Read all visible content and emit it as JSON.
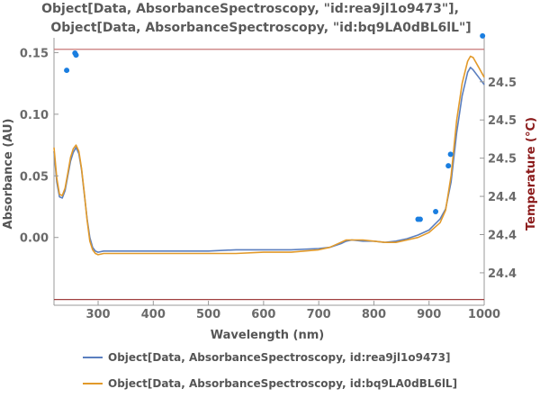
{
  "chart_data": {
    "type": "line",
    "title_lines": [
      "Object[Data, AbsorbanceSpectroscopy, \"id:rea9jl1o9473\"],",
      "Object[Data, AbsorbanceSpectroscopy, \"id:bq9LA0dBL6lL\"]"
    ],
    "xlabel": "Wavelength  (nm)",
    "ylabel": "Absorbance  (AU)",
    "y2label": "Temperature  (°C)",
    "xlim": [
      220,
      1000
    ],
    "ylim": [
      -0.055,
      0.162
    ],
    "y2lim": [
      24.383,
      24.523
    ],
    "xticks": [
      300,
      400,
      500,
      600,
      700,
      800,
      900,
      1000
    ],
    "xtick_labels": [
      "300",
      "400",
      "500",
      "600",
      "700",
      "800",
      "900",
      "1000"
    ],
    "yticks": [
      0.0,
      0.05,
      0.1,
      0.15
    ],
    "ytick_labels": [
      "0.00",
      "0.05",
      "0.10",
      "0.15"
    ],
    "y2ticks": [
      24.4,
      24.42,
      24.44,
      24.46,
      24.48,
      24.5
    ],
    "y2tick_labels": [
      "24.4",
      "24.4",
      "24.4",
      "24.5",
      "24.5",
      "24.5"
    ],
    "grid": false,
    "legend_position": "bottom",
    "series": [
      {
        "name": "Object[Data, AbsorbanceSpectroscopy, id:rea9jl1o9473]",
        "color": "#5b7fbf",
        "x": [
          220,
          225,
          230,
          235,
          240,
          245,
          250,
          255,
          260,
          265,
          270,
          275,
          280,
          285,
          290,
          295,
          300,
          310,
          320,
          340,
          360,
          380,
          400,
          450,
          500,
          550,
          600,
          650,
          700,
          720,
          740,
          750,
          760,
          780,
          800,
          820,
          840,
          860,
          880,
          900,
          920,
          930,
          940,
          950,
          960,
          970,
          975,
          980,
          990,
          1000
        ],
        "y": [
          0.07,
          0.045,
          0.033,
          0.032,
          0.038,
          0.05,
          0.062,
          0.069,
          0.073,
          0.068,
          0.055,
          0.035,
          0.015,
          0.0,
          -0.008,
          -0.011,
          -0.012,
          -0.011,
          -0.011,
          -0.011,
          -0.011,
          -0.011,
          -0.011,
          -0.011,
          -0.011,
          -0.01,
          -0.01,
          -0.01,
          -0.009,
          -0.008,
          -0.005,
          -0.003,
          -0.002,
          -0.003,
          -0.003,
          -0.004,
          -0.003,
          -0.001,
          0.002,
          0.006,
          0.015,
          0.023,
          0.045,
          0.085,
          0.115,
          0.134,
          0.138,
          0.136,
          0.13,
          0.124
        ]
      },
      {
        "name": "Object[Data, AbsorbanceSpectroscopy, id:bq9LA0dBL6lL]",
        "color": "#e29a2a",
        "x": [
          220,
          225,
          230,
          235,
          240,
          245,
          250,
          255,
          260,
          265,
          270,
          275,
          280,
          285,
          290,
          295,
          300,
          310,
          320,
          340,
          360,
          380,
          400,
          450,
          500,
          550,
          600,
          650,
          700,
          720,
          740,
          750,
          760,
          780,
          800,
          820,
          840,
          860,
          880,
          900,
          920,
          930,
          940,
          950,
          960,
          970,
          975,
          980,
          990,
          1000
        ],
        "y": [
          0.073,
          0.048,
          0.035,
          0.034,
          0.04,
          0.052,
          0.065,
          0.072,
          0.075,
          0.07,
          0.056,
          0.036,
          0.014,
          -0.003,
          -0.01,
          -0.013,
          -0.014,
          -0.013,
          -0.013,
          -0.013,
          -0.013,
          -0.013,
          -0.013,
          -0.013,
          -0.013,
          -0.013,
          -0.012,
          -0.012,
          -0.01,
          -0.008,
          -0.004,
          -0.002,
          -0.002,
          -0.002,
          -0.003,
          -0.004,
          -0.004,
          -0.002,
          0.0,
          0.004,
          0.012,
          0.022,
          0.05,
          0.095,
          0.125,
          0.143,
          0.147,
          0.146,
          0.138,
          0.13
        ]
      }
    ],
    "temperature_points": {
      "color": "#1a7ee0",
      "x": [
        243,
        258,
        260,
        880,
        884,
        912,
        935,
        939,
        997
      ],
      "y": [
        24.506,
        24.515,
        24.514,
        24.428,
        24.428,
        24.432,
        24.456,
        24.462,
        24.524
      ]
    },
    "reference_lines": [
      {
        "axis": "y2",
        "value": 24.517,
        "color": "#c87878"
      },
      {
        "axis": "y2",
        "value": 24.386,
        "color": "#a04040"
      }
    ],
    "colors": {
      "axis": "#999999",
      "tick_text": "#6a6a6a",
      "y2label": "#8b1a1a"
    }
  }
}
